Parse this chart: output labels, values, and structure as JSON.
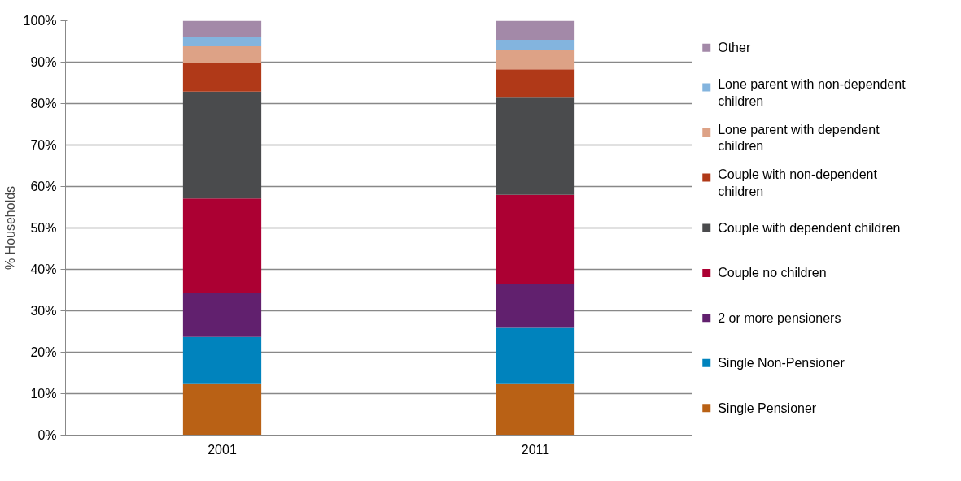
{
  "chart_data": {
    "type": "bar",
    "stacked": true,
    "ylabel": "% Households",
    "categories": [
      "2001",
      "2011"
    ],
    "ylim": [
      0,
      100
    ],
    "yticks": [
      {
        "value": 0,
        "label": "0%"
      },
      {
        "value": 10,
        "label": "10%"
      },
      {
        "value": 20,
        "label": "20%"
      },
      {
        "value": 30,
        "label": "30%"
      },
      {
        "value": 40,
        "label": "40%"
      },
      {
        "value": 50,
        "label": "50%"
      },
      {
        "value": 60,
        "label": "60%"
      },
      {
        "value": 70,
        "label": "70%"
      },
      {
        "value": 80,
        "label": "80%"
      },
      {
        "value": 90,
        "label": "90%"
      },
      {
        "value": 100,
        "label": "100%"
      }
    ],
    "grid": "y",
    "legend": "right",
    "series": [
      {
        "name": "Single Pensioner",
        "color": "#b96115",
        "values": [
          12.5,
          12.5
        ]
      },
      {
        "name": "Single Non-Pensioner",
        "color": "#0083bd",
        "values": [
          11.2,
          13.4
        ]
      },
      {
        "name": "2 or more pensioners",
        "color": "#61206e",
        "values": [
          10.5,
          10.6
        ]
      },
      {
        "name": "Couple no children",
        "color": "#ac0033",
        "values": [
          22.9,
          21.5
        ]
      },
      {
        "name": "Couple with dependent children",
        "color": "#4a4b4d",
        "values": [
          25.8,
          23.6
        ]
      },
      {
        "name": "Couple with non-dependent children",
        "color": "#b03918",
        "values": [
          6.9,
          6.7
        ]
      },
      {
        "name": "Lone parent with dependent children",
        "color": "#dda286",
        "values": [
          4.0,
          4.7
        ]
      },
      {
        "name": "Lone parent with non-dependent children",
        "color": "#83b4de",
        "values": [
          2.4,
          2.4
        ]
      },
      {
        "name": "Other",
        "color": "#a389a8",
        "values": [
          3.8,
          4.6
        ]
      }
    ]
  }
}
